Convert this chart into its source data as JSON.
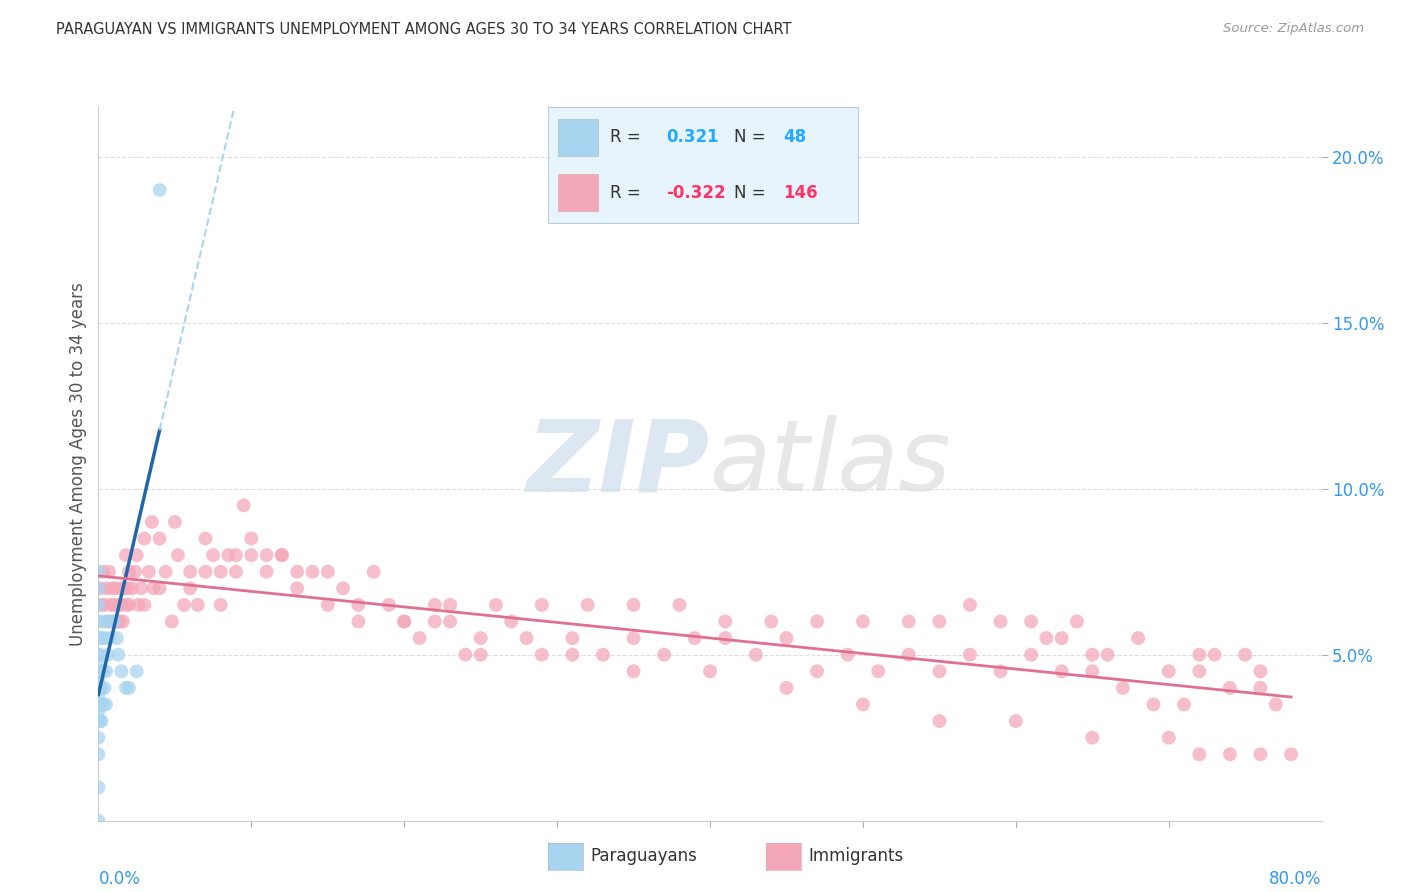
{
  "title": "PARAGUAYAN VS IMMIGRANTS UNEMPLOYMENT AMONG AGES 30 TO 34 YEARS CORRELATION CHART",
  "source": "Source: ZipAtlas.com",
  "ylabel": "Unemployment Among Ages 30 to 34 years",
  "xlim": [
    0.0,
    0.8
  ],
  "ylim": [
    0.0,
    0.215
  ],
  "yticks": [
    0.05,
    0.1,
    0.15,
    0.2
  ],
  "ytick_labels": [
    "5.0%",
    "10.0%",
    "15.0%",
    "20.0%"
  ],
  "xtick_left": "0.0%",
  "xtick_right": "80.0%",
  "paraguayan_color": "#a8d4f0",
  "immigrant_color": "#f4a7b9",
  "paraguayan_line_color": "#2266aa",
  "paraguayan_dash_color": "#a8d4f0",
  "immigrant_line_color": "#e07090",
  "background_color": "#ffffff",
  "grid_color": "#dddddd",
  "watermark_text": "ZIPatlas",
  "watermark_color": "#e0e8f0",
  "paraguayan_scatter_x": [
    0.0,
    0.0,
    0.0,
    0.0,
    0.0,
    0.0,
    0.0,
    0.0,
    0.0,
    0.0,
    0.0,
    0.0,
    0.0,
    0.0,
    0.0,
    0.0,
    0.0,
    0.0,
    0.001,
    0.001,
    0.001,
    0.001,
    0.001,
    0.001,
    0.002,
    0.002,
    0.002,
    0.002,
    0.003,
    0.003,
    0.003,
    0.004,
    0.004,
    0.005,
    0.005,
    0.006,
    0.006,
    0.007,
    0.008,
    0.009,
    0.01,
    0.012,
    0.013,
    0.015,
    0.018,
    0.02,
    0.025,
    0.04
  ],
  "paraguayan_scatter_y": [
    0.0,
    0.01,
    0.02,
    0.025,
    0.03,
    0.033,
    0.035,
    0.038,
    0.04,
    0.042,
    0.045,
    0.048,
    0.05,
    0.055,
    0.06,
    0.065,
    0.07,
    0.075,
    0.03,
    0.035,
    0.04,
    0.045,
    0.05,
    0.055,
    0.03,
    0.035,
    0.04,
    0.055,
    0.035,
    0.045,
    0.06,
    0.04,
    0.055,
    0.035,
    0.045,
    0.05,
    0.06,
    0.055,
    0.06,
    0.06,
    0.06,
    0.055,
    0.05,
    0.045,
    0.04,
    0.04,
    0.045,
    0.19
  ],
  "immigrant_scatter_x": [
    0.0,
    0.001,
    0.002,
    0.003,
    0.004,
    0.005,
    0.006,
    0.007,
    0.008,
    0.009,
    0.01,
    0.011,
    0.012,
    0.013,
    0.014,
    0.015,
    0.016,
    0.017,
    0.018,
    0.019,
    0.02,
    0.022,
    0.024,
    0.026,
    0.028,
    0.03,
    0.033,
    0.036,
    0.04,
    0.044,
    0.048,
    0.052,
    0.056,
    0.06,
    0.065,
    0.07,
    0.075,
    0.08,
    0.085,
    0.09,
    0.095,
    0.1,
    0.11,
    0.12,
    0.13,
    0.14,
    0.15,
    0.16,
    0.17,
    0.18,
    0.19,
    0.2,
    0.21,
    0.22,
    0.23,
    0.24,
    0.25,
    0.27,
    0.29,
    0.31,
    0.33,
    0.35,
    0.37,
    0.39,
    0.41,
    0.43,
    0.45,
    0.47,
    0.49,
    0.51,
    0.53,
    0.55,
    0.57,
    0.59,
    0.61,
    0.63,
    0.65,
    0.67,
    0.69,
    0.71,
    0.012,
    0.015,
    0.018,
    0.02,
    0.025,
    0.03,
    0.035,
    0.04,
    0.05,
    0.06,
    0.07,
    0.08,
    0.09,
    0.1,
    0.11,
    0.12,
    0.13,
    0.15,
    0.17,
    0.2,
    0.22,
    0.25,
    0.28,
    0.31,
    0.35,
    0.4,
    0.45,
    0.5,
    0.55,
    0.6,
    0.65,
    0.7,
    0.72,
    0.74,
    0.76,
    0.78,
    0.72,
    0.74,
    0.76,
    0.77,
    0.68,
    0.66,
    0.64,
    0.62,
    0.7,
    0.72,
    0.75,
    0.76,
    0.73,
    0.65,
    0.63,
    0.61,
    0.59,
    0.57,
    0.55,
    0.53,
    0.5,
    0.47,
    0.44,
    0.41,
    0.38,
    0.35,
    0.32,
    0.29,
    0.26,
    0.23
  ],
  "immigrant_scatter_y": [
    0.065,
    0.07,
    0.065,
    0.075,
    0.065,
    0.07,
    0.06,
    0.075,
    0.065,
    0.07,
    0.065,
    0.07,
    0.06,
    0.065,
    0.06,
    0.065,
    0.06,
    0.07,
    0.065,
    0.07,
    0.065,
    0.07,
    0.075,
    0.065,
    0.07,
    0.065,
    0.075,
    0.07,
    0.07,
    0.075,
    0.06,
    0.08,
    0.065,
    0.07,
    0.065,
    0.075,
    0.08,
    0.065,
    0.08,
    0.075,
    0.095,
    0.085,
    0.075,
    0.08,
    0.07,
    0.075,
    0.065,
    0.07,
    0.065,
    0.075,
    0.065,
    0.06,
    0.055,
    0.065,
    0.06,
    0.05,
    0.055,
    0.06,
    0.05,
    0.055,
    0.05,
    0.055,
    0.05,
    0.055,
    0.055,
    0.05,
    0.055,
    0.045,
    0.05,
    0.045,
    0.05,
    0.045,
    0.05,
    0.045,
    0.05,
    0.045,
    0.045,
    0.04,
    0.035,
    0.035,
    0.06,
    0.07,
    0.08,
    0.075,
    0.08,
    0.085,
    0.09,
    0.085,
    0.09,
    0.075,
    0.085,
    0.075,
    0.08,
    0.08,
    0.08,
    0.08,
    0.075,
    0.075,
    0.06,
    0.06,
    0.06,
    0.05,
    0.055,
    0.05,
    0.045,
    0.045,
    0.04,
    0.035,
    0.03,
    0.03,
    0.025,
    0.025,
    0.02,
    0.02,
    0.02,
    0.02,
    0.045,
    0.04,
    0.04,
    0.035,
    0.055,
    0.05,
    0.06,
    0.055,
    0.045,
    0.05,
    0.05,
    0.045,
    0.05,
    0.05,
    0.055,
    0.06,
    0.06,
    0.065,
    0.06,
    0.06,
    0.06,
    0.06,
    0.06,
    0.06,
    0.065,
    0.065,
    0.065,
    0.065,
    0.065,
    0.065
  ]
}
